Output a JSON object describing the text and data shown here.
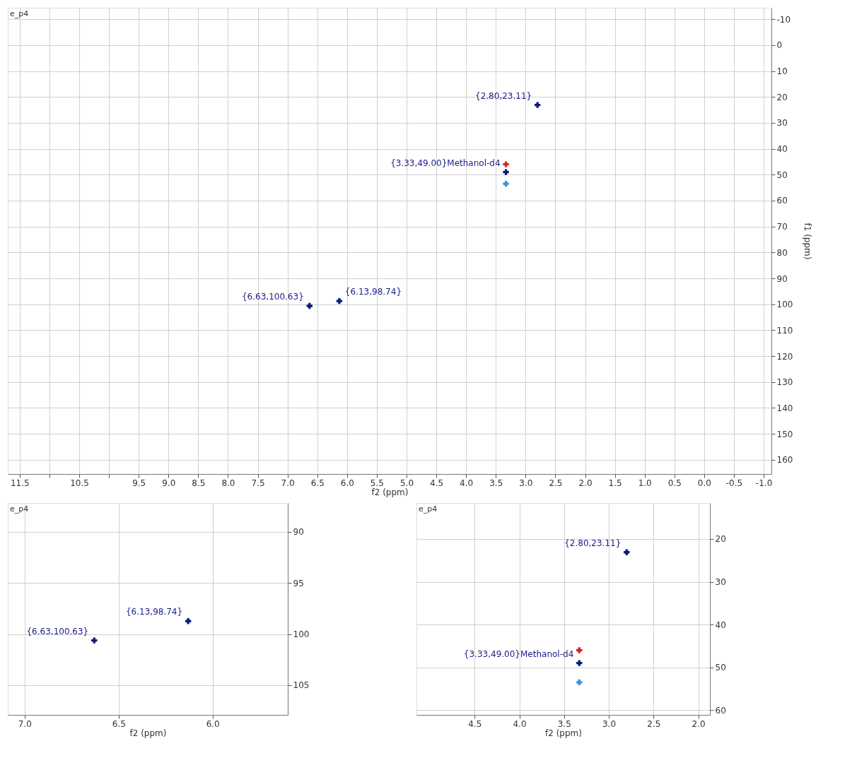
{
  "chart_data": [
    {
      "type": "scatter",
      "xlabel": "f2 (ppm)",
      "ylabel": "f1 (ppm)",
      "grid": true,
      "marker": "cross",
      "xlim": [
        11.7,
        -1.13
      ],
      "ylim": [
        165.5,
        -14.4
      ],
      "xticks": [
        11.5,
        {
          "value": 11,
          "label": null
        },
        10.5,
        {
          "value": 10,
          "label": null
        },
        9.5,
        {
          "value": 9,
          "label": "9.0"
        },
        8.5,
        {
          "value": 8,
          "label": "8.0"
        },
        7.5,
        {
          "value": 7,
          "label": "7.0"
        },
        6.5,
        {
          "value": 6,
          "label": "6.0"
        },
        5.5,
        {
          "value": 5,
          "label": "5.0"
        },
        4.5,
        {
          "value": 4,
          "label": "4.0"
        },
        3.5,
        {
          "value": 3,
          "label": "3.0"
        },
        2.5,
        {
          "value": 2,
          "label": "2.0"
        },
        1.5,
        {
          "value": 1,
          "label": "1.0"
        },
        0.5,
        {
          "value": 0,
          "label": "0.0"
        },
        -0.5,
        {
          "value": -1,
          "label": "-1.0"
        }
      ],
      "yticks": [
        -10,
        0,
        10,
        20,
        30,
        40,
        50,
        60,
        70,
        80,
        90,
        100,
        110,
        120,
        130,
        140,
        150,
        160
      ],
      "series": [
        {
          "color": "#0a1a7a",
          "x": [
            2.8,
            3.33,
            6.63,
            6.13
          ],
          "values": [
            23.11,
            49.0,
            100.63,
            98.74
          ]
        },
        {
          "color": "#e02020",
          "x": [
            3.33
          ],
          "values": [
            46
          ]
        },
        {
          "color": "#3a8fd8",
          "x": [
            3.33
          ],
          "values": [
            53.5
          ]
        }
      ],
      "annotations": [
        "e_p4",
        {
          "text": "{2.80,23.11}",
          "x": 2.8,
          "y": 23.11
        },
        {
          "text": "{3.33,49.00}Methanol-d4",
          "x": 3.33,
          "y": 49.0
        },
        {
          "text": "{6.63,100.63}",
          "x": 6.63,
          "y": 100.63
        },
        {
          "text": "{6.13,98.74}",
          "x": 6.13,
          "y": 98.74
        }
      ]
    },
    {
      "type": "scatter",
      "xlabel": "f2 (ppm)",
      "grid": true,
      "marker": "cross",
      "xlim": [
        7.09,
        5.6
      ],
      "ylim": [
        107.9,
        87.2
      ],
      "xticks": [
        {
          "value": 7,
          "label": "7.0"
        },
        6.5,
        {
          "value": 6,
          "label": "6.0"
        }
      ],
      "yticks": [
        90,
        95,
        100,
        105
      ],
      "series": [
        {
          "color": "#0a1a7a",
          "x": [
            6.63,
            6.13
          ],
          "values": [
            100.63,
            98.74
          ]
        }
      ],
      "annotations": [
        "e_p4",
        {
          "text": "{6.63,100.63}",
          "x": 6.63,
          "y": 100.63
        },
        {
          "text": "{6.13,98.74}",
          "x": 6.13,
          "y": 98.74
        }
      ]
    },
    {
      "type": "scatter",
      "xlabel": "f2 (ppm)",
      "grid": true,
      "marker": "cross",
      "xlim": [
        5.15,
        1.87
      ],
      "ylim": [
        61.1,
        11.6
      ],
      "xticks": [
        4.5,
        {
          "value": 4,
          "label": "4.0"
        },
        3.5,
        {
          "value": 3,
          "label": "3.0"
        },
        2.5,
        {
          "value": 2,
          "label": "2.0"
        }
      ],
      "yticks": [
        20,
        30,
        40,
        50,
        60
      ],
      "series": [
        {
          "color": "#0a1a7a",
          "x": [
            2.8,
            3.33
          ],
          "values": [
            23.11,
            49.0
          ]
        },
        {
          "color": "#e02020",
          "x": [
            3.33
          ],
          "values": [
            46
          ]
        },
        {
          "color": "#3a8fd8",
          "x": [
            3.33
          ],
          "values": [
            53.5
          ]
        }
      ],
      "annotations": [
        "e_p4",
        {
          "text": "{2.80,23.11}",
          "x": 2.8,
          "y": 23.11
        },
        {
          "text": "{3.33,49.00}Methanol-d4",
          "x": 3.33,
          "y": 49.0
        }
      ]
    }
  ]
}
